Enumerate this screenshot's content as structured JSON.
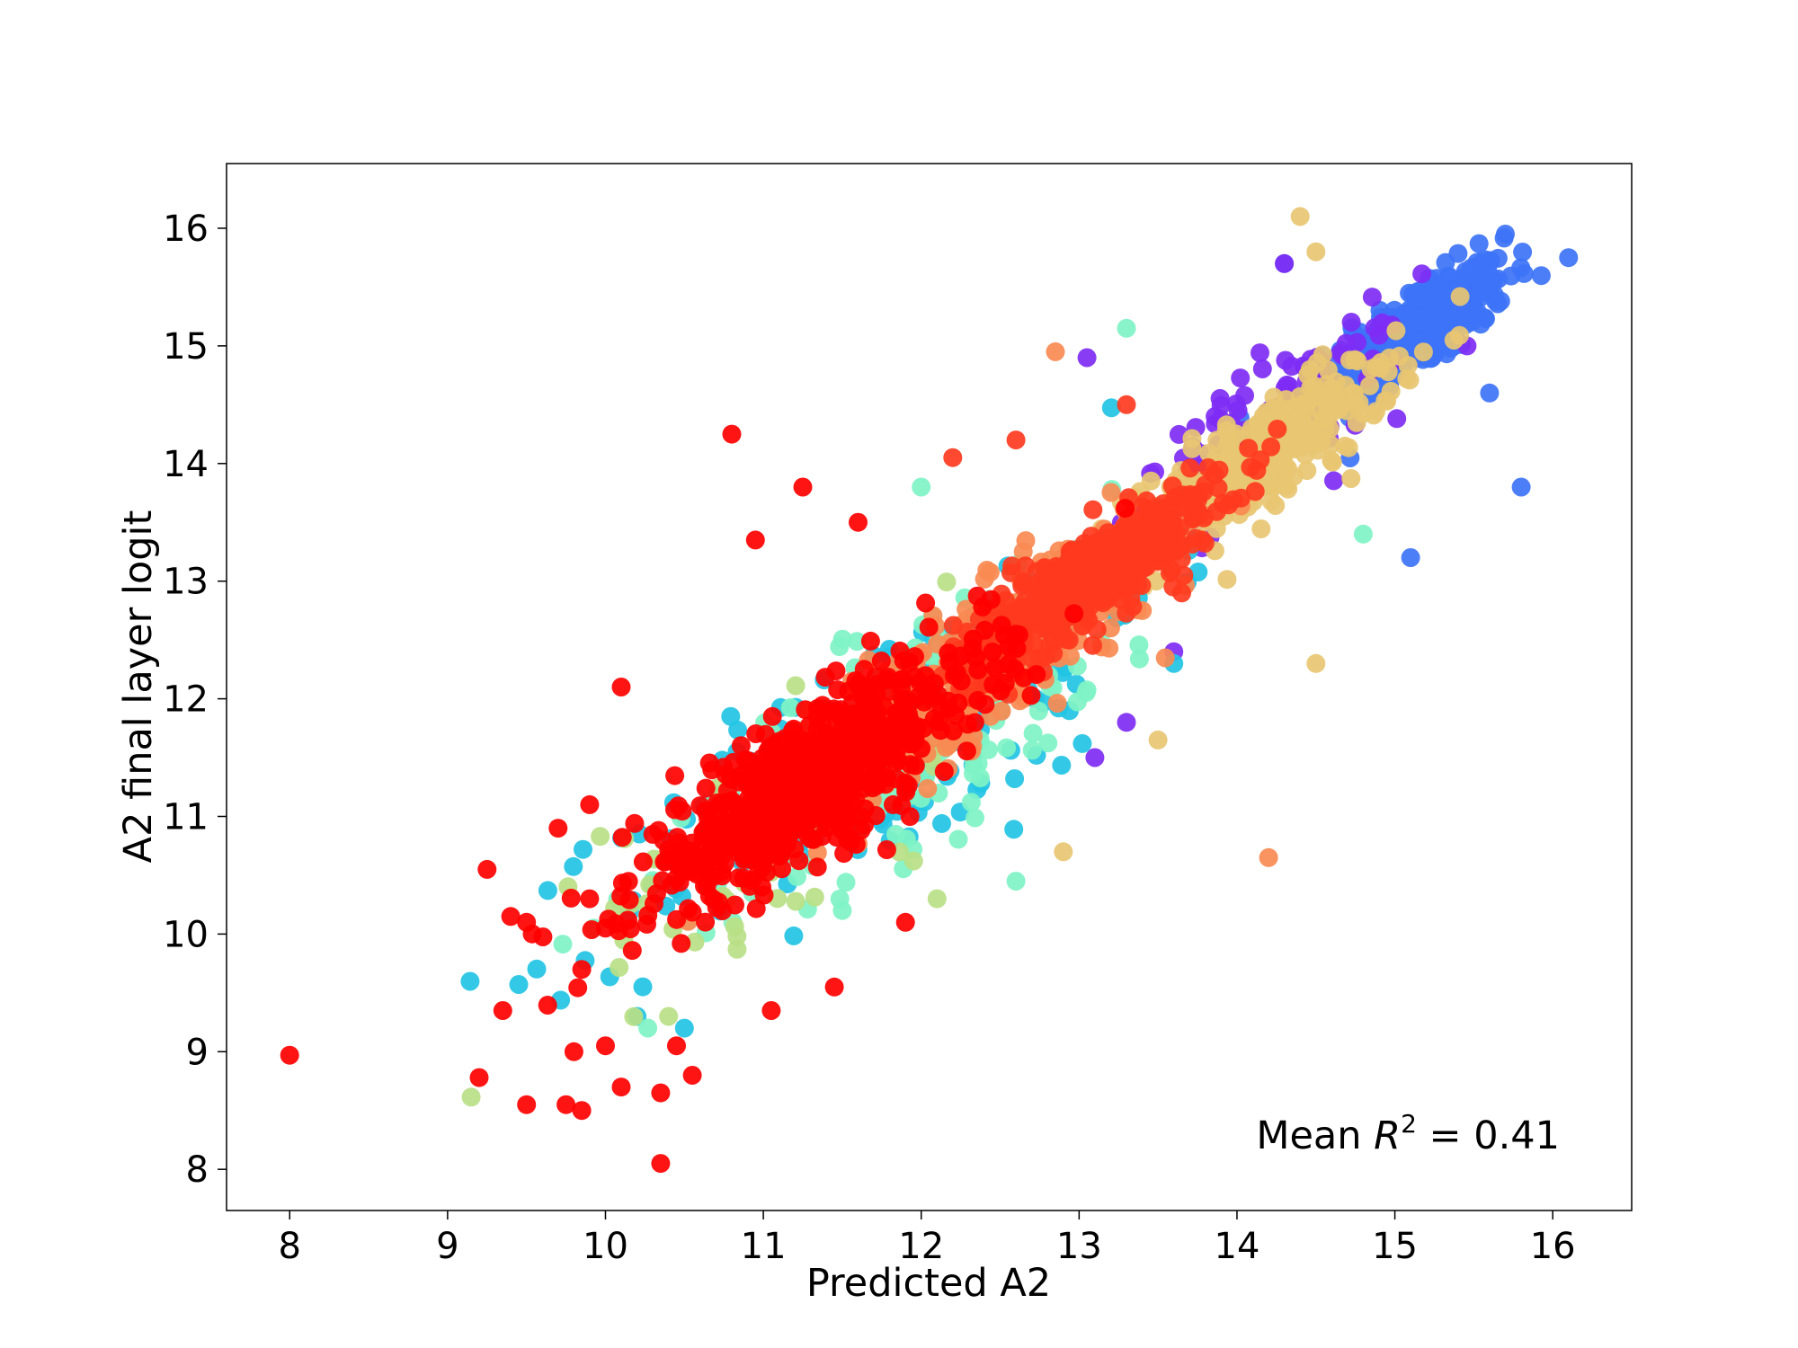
{
  "chart_data": {
    "type": "scatter",
    "title": "",
    "xlabel": "Predicted A2",
    "ylabel": "A2 final layer logit",
    "xlim": [
      7.6,
      16.5
    ],
    "ylim": [
      7.65,
      16.55
    ],
    "xticks": [
      8,
      9,
      10,
      11,
      12,
      13,
      14,
      15,
      16
    ],
    "yticks": [
      8,
      9,
      10,
      11,
      12,
      13,
      14,
      15,
      16
    ],
    "grid": false,
    "legend": "none",
    "annotation": {
      "prefix": "Mean ",
      "symbol": "R",
      "superscript": "2",
      "suffix": " = 0.41"
    },
    "series": [
      {
        "color": "#3d73f7",
        "cluster": {
          "center": [
            15.15,
            15.15
          ],
          "spread": 0.28,
          "corr": 0.75,
          "count": 380
        },
        "points": [
          [
            16.1,
            15.75
          ],
          [
            15.7,
            15.95
          ],
          [
            15.8,
            13.8
          ],
          [
            15.1,
            13.2
          ],
          [
            14.3,
            15.7
          ],
          [
            15.6,
            14.6
          ]
        ]
      },
      {
        "color": "#7e2cf4",
        "cluster": {
          "center": [
            14.2,
            14.3
          ],
          "spread": 0.45,
          "corr": 0.8,
          "count": 120
        },
        "points": [
          [
            14.3,
            15.7
          ],
          [
            13.05,
            14.9
          ],
          [
            13.6,
            12.4
          ],
          [
            13.1,
            11.5
          ],
          [
            13.3,
            11.8
          ]
        ]
      },
      {
        "color": "#e8c571",
        "cluster": {
          "center": [
            14.15,
            14.05
          ],
          "spread": 0.42,
          "corr": 0.85,
          "count": 320
        },
        "points": [
          [
            14.4,
            16.1
          ],
          [
            14.5,
            12.3
          ],
          [
            12.9,
            10.7
          ],
          [
            13.5,
            11.65
          ],
          [
            14.5,
            15.8
          ]
        ]
      },
      {
        "color": "#22c4e4",
        "cluster": {
          "center": [
            11.8,
            11.6
          ],
          "spread": 0.85,
          "corr": 0.8,
          "count": 220
        },
        "points": [
          [
            10.5,
            9.2
          ],
          [
            10.2,
            9.3
          ],
          [
            12.7,
            13.0
          ],
          [
            13.6,
            12.3
          ]
        ]
      },
      {
        "color": "#7ff3c5",
        "cluster": {
          "center": [
            12.0,
            11.8
          ],
          "spread": 0.85,
          "corr": 0.8,
          "count": 180
        },
        "points": [
          [
            13.3,
            15.15
          ],
          [
            12.6,
            10.45
          ],
          [
            11.5,
            10.2
          ],
          [
            14.8,
            13.4
          ],
          [
            12.0,
            13.8
          ]
        ]
      },
      {
        "color": "#b8e085",
        "cluster": {
          "center": [
            11.4,
            11.3
          ],
          "spread": 0.7,
          "corr": 0.8,
          "count": 90
        },
        "points": [
          [
            10.4,
            9.3
          ],
          [
            12.1,
            10.3
          ]
        ]
      },
      {
        "color": "#f88a52",
        "cluster": {
          "center": [
            12.3,
            12.2
          ],
          "spread": 0.6,
          "corr": 0.85,
          "count": 320
        },
        "points": [
          [
            12.85,
            14.95
          ],
          [
            14.2,
            10.65
          ]
        ]
      },
      {
        "color": "#ff3a1e",
        "cluster": {
          "center": [
            13.05,
            13.0
          ],
          "spread": 0.42,
          "corr": 0.88,
          "count": 480
        },
        "points": [
          [
            12.2,
            14.05
          ],
          [
            12.6,
            14.2
          ],
          [
            13.3,
            14.5
          ],
          [
            13.65,
            12.9
          ]
        ]
      },
      {
        "color": "#ff0000",
        "cluster": {
          "center": [
            11.3,
            11.3
          ],
          "spread": 0.55,
          "corr": 0.82,
          "count": 700
        },
        "points": [
          [
            8.0,
            8.97
          ],
          [
            9.2,
            8.78
          ],
          [
            9.25,
            10.55
          ],
          [
            9.5,
            10.1
          ],
          [
            9.4,
            10.15
          ],
          [
            9.35,
            9.35
          ],
          [
            9.5,
            8.55
          ],
          [
            9.75,
            8.55
          ],
          [
            9.85,
            8.5
          ],
          [
            10.35,
            8.05
          ],
          [
            10.35,
            8.65
          ],
          [
            10.1,
            8.7
          ],
          [
            9.8,
            9.0
          ],
          [
            10.0,
            9.05
          ],
          [
            10.55,
            8.8
          ],
          [
            10.8,
            14.25
          ],
          [
            10.1,
            12.1
          ],
          [
            11.25,
            13.8
          ],
          [
            10.95,
            13.35
          ],
          [
            11.6,
            13.5
          ],
          [
            9.9,
            10.3
          ],
          [
            9.7,
            10.9
          ],
          [
            9.9,
            11.1
          ],
          [
            9.85,
            9.7
          ],
          [
            10.0,
            10.05
          ],
          [
            10.45,
            9.05
          ],
          [
            11.45,
            9.55
          ],
          [
            11.05,
            9.35
          ],
          [
            11.9,
            10.1
          ]
        ]
      }
    ]
  }
}
